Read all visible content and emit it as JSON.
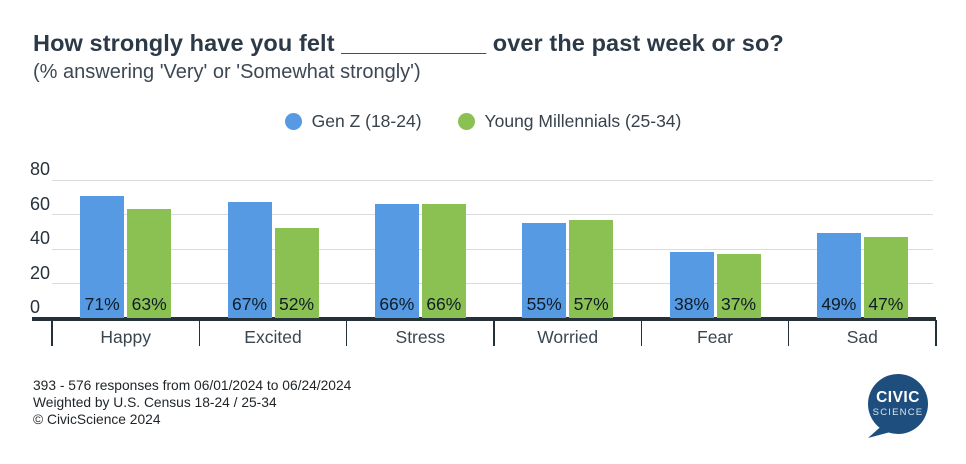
{
  "title": "How strongly have you felt ___________ over the past week or so?",
  "subtitle": "(% answering 'Very' or 'Somewhat strongly')",
  "chart_data": {
    "type": "bar",
    "categories": [
      "Happy",
      "Excited",
      "Stress",
      "Worried",
      "Fear",
      "Sad"
    ],
    "series": [
      {
        "name": "Gen Z (18-24)",
        "color": "#569AE4",
        "values": [
          71,
          67,
          66,
          55,
          38,
          49
        ]
      },
      {
        "name": "Young Millennials (25-34)",
        "color": "#8BC053",
        "values": [
          63,
          52,
          66,
          57,
          37,
          47
        ]
      }
    ],
    "value_suffix": "%",
    "title": "How strongly have you felt ___________ over the past week or so?",
    "subtitle": "(% answering 'Very' or 'Somewhat strongly')",
    "xlabel": "",
    "ylabel": "",
    "ylim": [
      0,
      80
    ],
    "yticks": [
      0,
      20,
      40,
      60,
      80
    ],
    "grid": true,
    "legend_position": "top-center",
    "bar_value_labels_position": "inside-bottom"
  },
  "footer": {
    "lines": [
      "393 - 576 responses from 06/01/2024 to 06/24/2024",
      "Weighted by U.S. Census 18-24 / 25-34",
      "© CivicScience 2024"
    ]
  },
  "logo": {
    "line1": "CIVIC",
    "line2": "SCIENCE",
    "bubble_color": "#1D4E7D",
    "line1_color": "#FFFFFF",
    "line2_color": "#D8E5F0"
  },
  "colors": {
    "bar_blue": "#569AE4",
    "bar_green": "#8BC053",
    "axis": "#253139",
    "gridline": "#D9DCDE",
    "title_text": "#2C3A47",
    "subtitle_text": "#3C4854",
    "value_text": "#0F1C26",
    "footer_text": "#1F2428",
    "logo_blue": "#1D4E7D",
    "background": "#FFFFFF"
  }
}
